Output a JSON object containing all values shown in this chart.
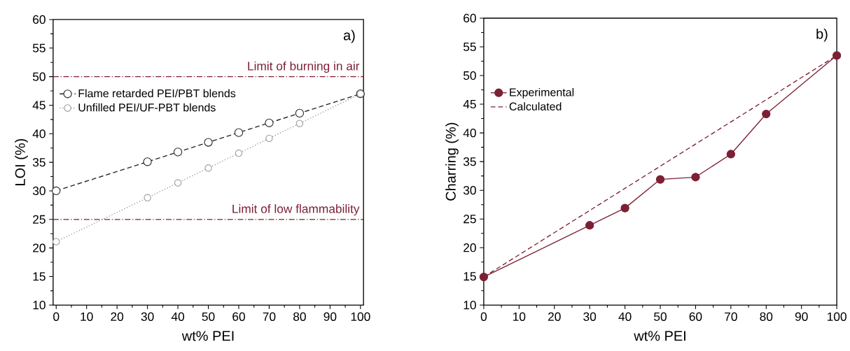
{
  "chart_data": [
    {
      "type": "line",
      "xlabel": "wt% PEI",
      "ylabel": "LOI (%)",
      "annotations": [
        "a)"
      ],
      "legend": "top left",
      "xlim": [
        -1,
        101
      ],
      "ylim": [
        10,
        60
      ],
      "xticks": [
        0,
        10,
        20,
        30,
        40,
        50,
        60,
        70,
        80,
        90,
        100
      ],
      "yticks": [
        10,
        15,
        20,
        25,
        30,
        35,
        40,
        45,
        50,
        55,
        60
      ],
      "ref_lines": [
        {
          "axis": "y",
          "value": 50,
          "label": "Limit of burning in air",
          "color": "#7b2035",
          "line_style": "dashdot"
        },
        {
          "axis": "y",
          "value": 25,
          "label": "Limit of low flammability",
          "color": "#7b2035",
          "line_style": "dashdot"
        }
      ],
      "x": [
        0,
        30,
        40,
        50,
        60,
        70,
        80,
        100
      ],
      "series": [
        {
          "name": "Flame retarded PEI/PBT blends",
          "color": "#222222",
          "marker": "circle",
          "line_style": "dashed",
          "values": [
            30.0,
            35.1,
            36.8,
            38.5,
            40.2,
            41.9,
            43.6,
            47.0
          ]
        },
        {
          "name": "Unfilled PEI/UF-PBT blends",
          "color": "#999999",
          "marker": "circle",
          "line_style": "dotted",
          "values": [
            21.1,
            28.8,
            31.4,
            34.0,
            36.6,
            39.2,
            41.8,
            47.0
          ]
        }
      ]
    },
    {
      "type": "line",
      "xlabel": "wt% PEI",
      "ylabel": "Charring (%)",
      "annotations": [
        "b)"
      ],
      "legend": "top left",
      "xlim": [
        0,
        100
      ],
      "ylim": [
        10,
        60
      ],
      "xticks": [
        0,
        10,
        20,
        30,
        40,
        50,
        60,
        70,
        80,
        90,
        100
      ],
      "yticks": [
        10,
        15,
        20,
        25,
        30,
        35,
        40,
        45,
        50,
        55,
        60
      ],
      "x": [
        0,
        30,
        40,
        50,
        60,
        70,
        80,
        100
      ],
      "series": [
        {
          "name": "Experimental",
          "color": "#7b2035",
          "marker": "circle",
          "line_style": "solid",
          "values": [
            14.9,
            23.9,
            26.9,
            31.9,
            32.3,
            36.3,
            43.3,
            53.5
          ]
        },
        {
          "name": "Calculated",
          "color": "#7b2035",
          "marker": "none",
          "line_style": "dashed",
          "x": [
            0,
            100
          ],
          "values": [
            14.9,
            53.5
          ]
        }
      ]
    }
  ]
}
